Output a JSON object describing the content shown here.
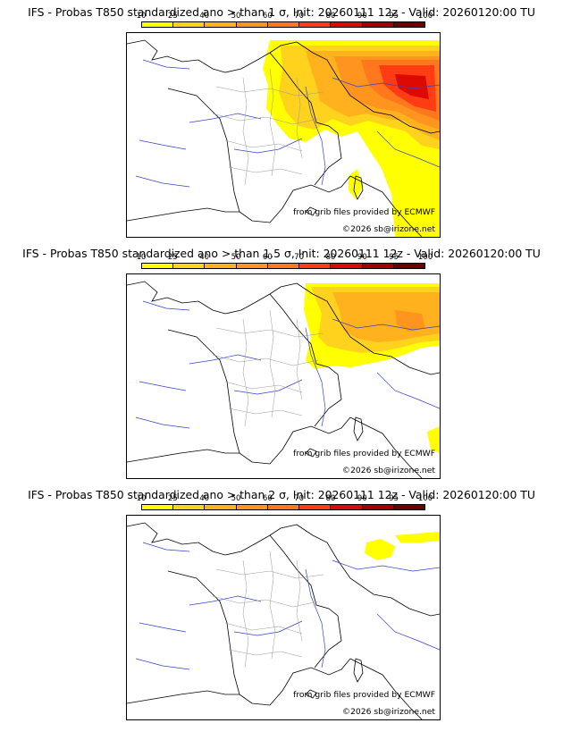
{
  "colorbar": {
    "ticks": [
      "10",
      "25",
      "40",
      "50",
      "60",
      "70",
      "80",
      "90",
      "95",
      "100"
    ],
    "colors": [
      "#ffff00",
      "#ffd21e",
      "#ffb11e",
      "#ff941e",
      "#ff781e",
      "#ff3c14",
      "#dc0a00",
      "#a50000",
      "#6e0000"
    ]
  },
  "panels": [
    {
      "title": "IFS - Probas T850  standardized ano > than 1 σ, Init: 20260111 12z - Valid: 20260120:00 TU",
      "credit_source": "from grib files provided by ECMWF",
      "credit_copyright": "©2026 sb@irizone.net"
    },
    {
      "title": "IFS - Probas T850  standardized ano > than 1.5 σ, Init: 20260111 12z - Valid: 20260120:00 TU",
      "credit_source": "from grib files provided by ECMWF",
      "credit_copyright": "©2026 sb@irizone.net"
    },
    {
      "title": "IFS - Probas T850  standardized ano > than 2 σ, Init: 20260111 12z - Valid: 20260120:00 TU",
      "credit_source": "from grib files provided by ECMWF",
      "credit_copyright": "©2026 sb@irizone.net"
    }
  ]
}
